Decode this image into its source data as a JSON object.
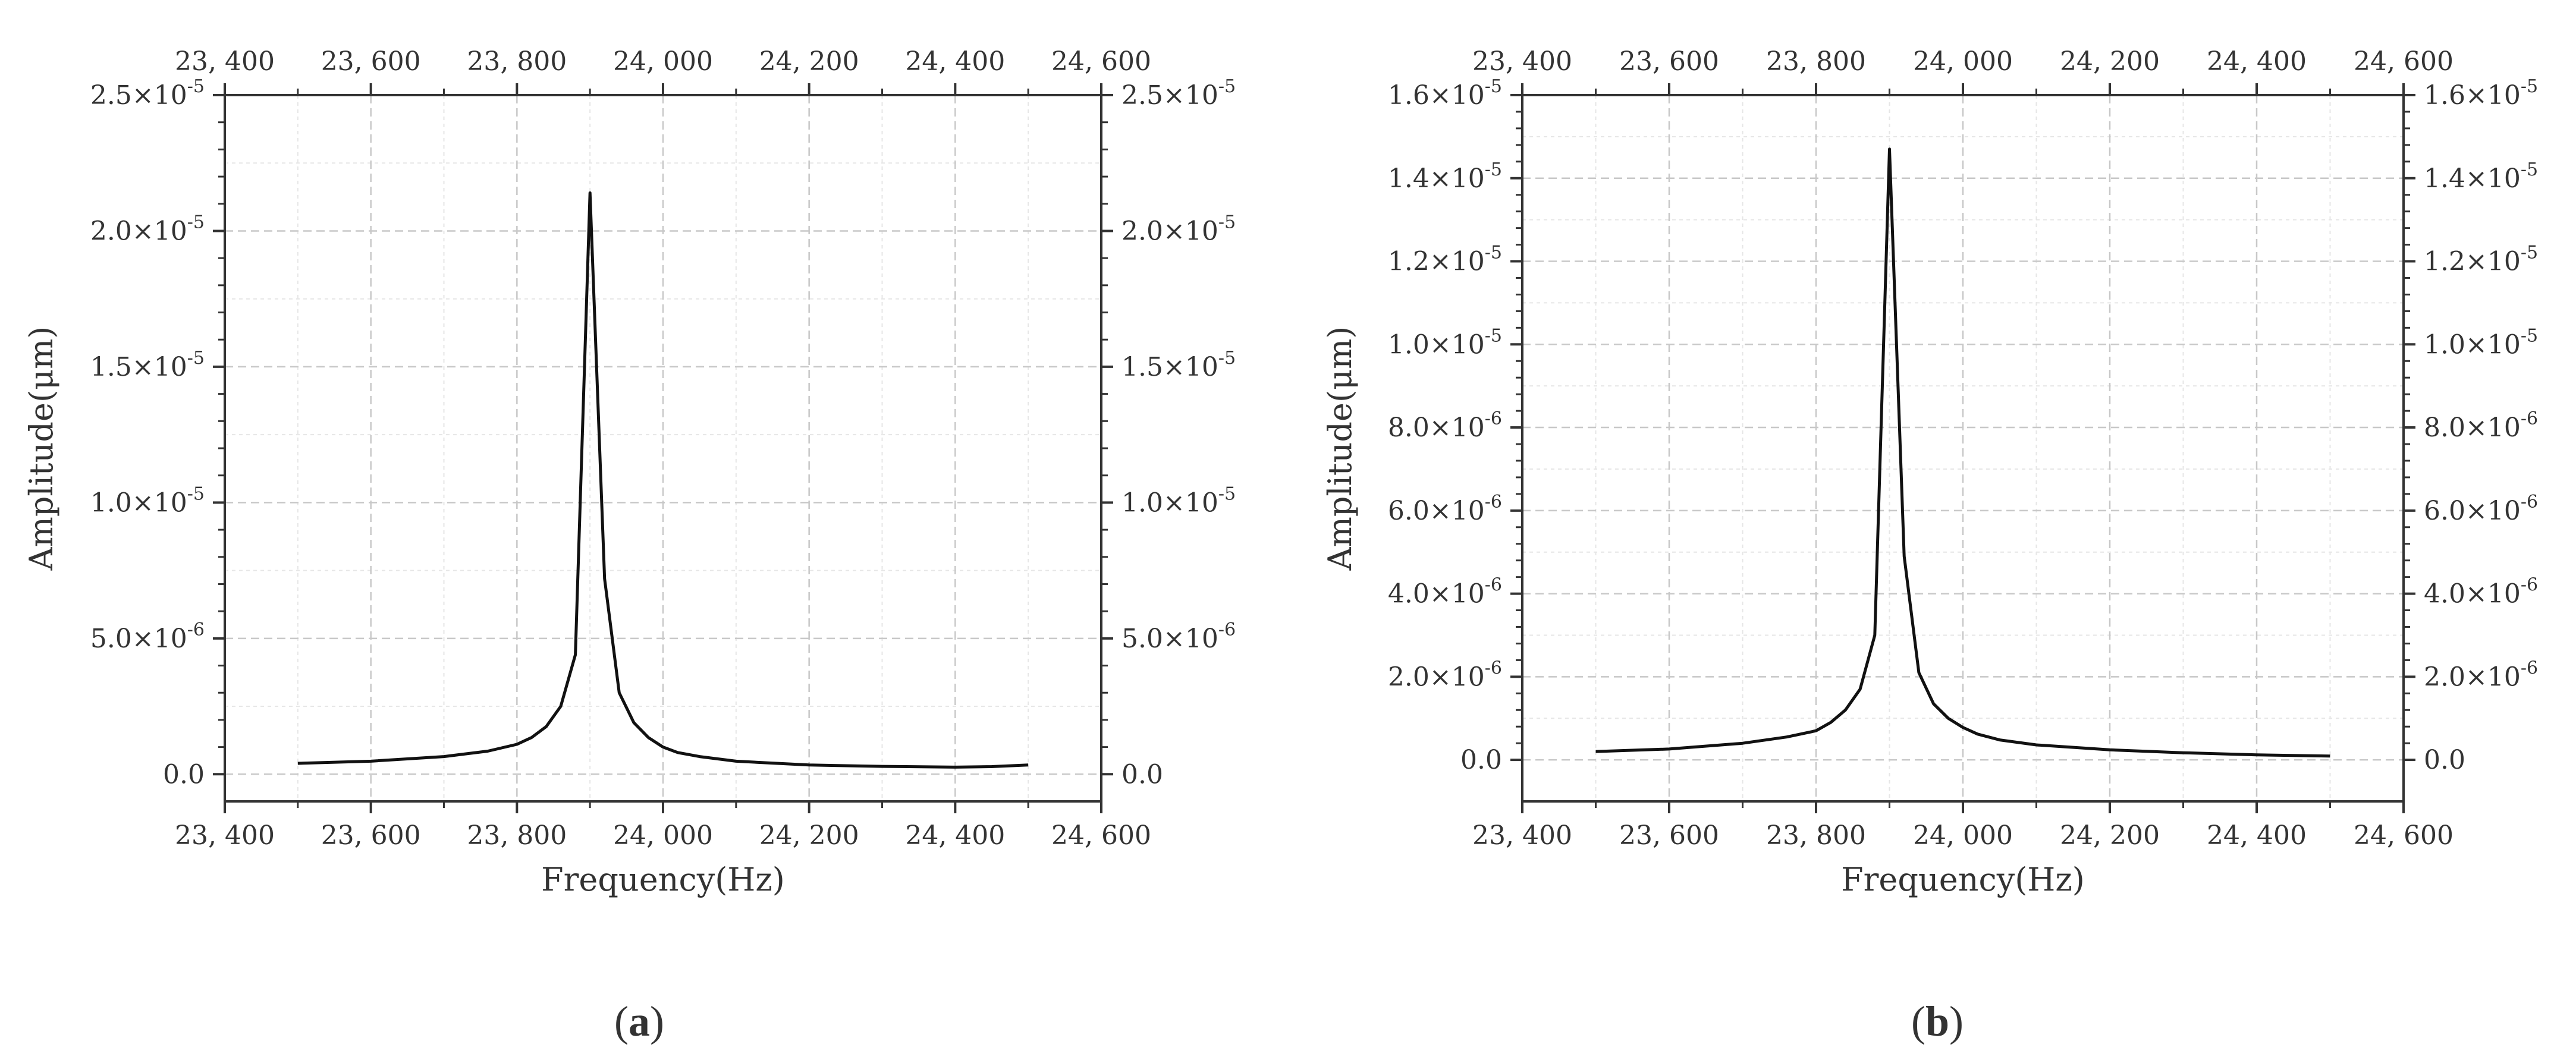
{
  "figure": {
    "line_color": "#111111",
    "grid_color": "#c8c8c8",
    "axis_color": "#333333"
  },
  "chart_data": [
    {
      "type": "line",
      "caption": {
        "open": "(",
        "letter": "a",
        "close": ")"
      },
      "xlabel": "Frequency(Hz)",
      "ylabel": "Amplitude(μm)",
      "xlim": [
        23400,
        24600
      ],
      "ylim": [
        -1e-06,
        2.5e-05
      ],
      "xticks": [
        {
          "value": 23400,
          "label": "23, 400"
        },
        {
          "value": 23600,
          "label": "23, 600"
        },
        {
          "value": 23800,
          "label": "23, 800"
        },
        {
          "value": 24000,
          "label": "24, 000"
        },
        {
          "value": 24200,
          "label": "24, 200"
        },
        {
          "value": 24400,
          "label": "24, 400"
        },
        {
          "value": 24600,
          "label": "24, 600"
        }
      ],
      "yticks": [
        {
          "value": 0,
          "mant": "0.0",
          "exp": ""
        },
        {
          "value": 5e-06,
          "mant": "5.0×10",
          "exp": "-6"
        },
        {
          "value": 1e-05,
          "mant": "1.0×10",
          "exp": "-5"
        },
        {
          "value": 1.5e-05,
          "mant": "1.5×10",
          "exp": "-5"
        },
        {
          "value": 2e-05,
          "mant": "2.0×10",
          "exp": "-5"
        },
        {
          "value": 2.5e-05,
          "mant": "2.5×10",
          "exp": "-5"
        }
      ],
      "series": [
        {
          "x": [
            23500,
            23600,
            23700,
            23760,
            23800,
            23820,
            23840,
            23860,
            23880,
            23900,
            23920,
            23940,
            23960,
            23980,
            24000,
            24020,
            24050,
            24100,
            24200,
            24300,
            24400,
            24450,
            24500
          ],
          "y": [
            4e-07,
            4.8e-07,
            6.5e-07,
            8.5e-07,
            1.1e-06,
            1.35e-06,
            1.75e-06,
            2.5e-06,
            4.4e-06,
            2.14e-05,
            7.2e-06,
            3e-06,
            1.9e-06,
            1.35e-06,
            1e-06,
            8e-07,
            6.5e-07,
            4.8e-07,
            3.4e-07,
            2.9e-07,
            2.6e-07,
            2.8e-07,
            3.4e-07
          ]
        }
      ]
    },
    {
      "type": "line",
      "caption": {
        "open": "(",
        "letter": "b",
        "close": ")"
      },
      "xlabel": "Frequency(Hz)",
      "ylabel": "Amplitude(μm)",
      "xlim": [
        23400,
        24600
      ],
      "ylim": [
        -1e-06,
        1.6e-05
      ],
      "xticks": [
        {
          "value": 23400,
          "label": "23, 400"
        },
        {
          "value": 23600,
          "label": "23, 600"
        },
        {
          "value": 23800,
          "label": "23, 800"
        },
        {
          "value": 24000,
          "label": "24, 000"
        },
        {
          "value": 24200,
          "label": "24, 200"
        },
        {
          "value": 24400,
          "label": "24, 400"
        },
        {
          "value": 24600,
          "label": "24, 600"
        }
      ],
      "yticks": [
        {
          "value": 0,
          "mant": "0.0",
          "exp": ""
        },
        {
          "value": 2e-06,
          "mant": "2.0×10",
          "exp": "-6"
        },
        {
          "value": 4e-06,
          "mant": "4.0×10",
          "exp": "-6"
        },
        {
          "value": 6e-06,
          "mant": "6.0×10",
          "exp": "-6"
        },
        {
          "value": 8e-06,
          "mant": "8.0×10",
          "exp": "-6"
        },
        {
          "value": 1e-05,
          "mant": "1.0×10",
          "exp": "-5"
        },
        {
          "value": 1.2e-05,
          "mant": "1.2×10",
          "exp": "-5"
        },
        {
          "value": 1.4e-05,
          "mant": "1.4×10",
          "exp": "-5"
        },
        {
          "value": 1.6e-05,
          "mant": "1.6×10",
          "exp": "-5"
        }
      ],
      "series": [
        {
          "x": [
            23500,
            23600,
            23700,
            23760,
            23800,
            23820,
            23840,
            23860,
            23880,
            23900,
            23920,
            23940,
            23960,
            23980,
            24000,
            24020,
            24050,
            24100,
            24200,
            24300,
            24400,
            24500
          ],
          "y": [
            2e-07,
            2.6e-07,
            4e-07,
            5.5e-07,
            7e-07,
            9e-07,
            1.2e-06,
            1.7e-06,
            3e-06,
            1.47e-05,
            4.9e-06,
            2.1e-06,
            1.35e-06,
            1e-06,
            7.8e-07,
            6.2e-07,
            4.8e-07,
            3.6e-07,
            2.4e-07,
            1.7e-07,
            1.2e-07,
            9e-08
          ]
        }
      ]
    }
  ]
}
